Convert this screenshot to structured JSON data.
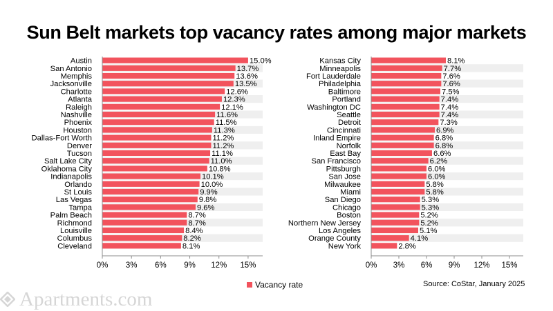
{
  "title": "Sun Belt markets top vacancy rates among major markets",
  "legend": {
    "label": "Vacancy rate",
    "color": "#f2535d"
  },
  "source": "Source: CoStar, January 2025",
  "logo": {
    "text": "Apartments.com",
    "icon": "apartments-logo-icon"
  },
  "colors": {
    "bar": "#f2535d",
    "stripe": "#efefef",
    "axis": "#8c8c8c"
  },
  "chart_data": [
    {
      "type": "bar",
      "orientation": "horizontal",
      "categories": [
        "Austin",
        "San Antonio",
        "Memphis",
        "Jacksonville",
        "Charlotte",
        "Atlanta",
        "Raleigh",
        "Nashville",
        "Phoenix",
        "Houston",
        "Dallas-Fort Worth",
        "Denver",
        "Tucson",
        "Salt Lake City",
        "Oklahoma City",
        "Indianapolis",
        "Orlando",
        "St Louis",
        "Las Vegas",
        "Tampa",
        "Palm Beach",
        "Richmond",
        "Louisville",
        "Columbus",
        "Cleveland"
      ],
      "values": [
        15.0,
        13.7,
        13.6,
        13.5,
        12.6,
        12.3,
        12.1,
        11.6,
        11.5,
        11.3,
        11.2,
        11.2,
        11.1,
        11.0,
        10.8,
        10.1,
        10.0,
        9.9,
        9.8,
        9.6,
        8.7,
        8.7,
        8.4,
        8.2,
        8.1
      ],
      "labels": [
        "15.0%",
        "13.7%",
        "13.6%",
        "13.5%",
        "12.6%",
        "12.3%",
        "12.1%",
        "11.6%",
        "11.5%",
        "11.3%",
        "11.2%",
        "11.2%",
        "11.1%",
        "11.0%",
        "10.8%",
        "10.1%",
        "10.0%",
        "9.9%",
        "9.8%",
        "9.6%",
        "8.7%",
        "8.7%",
        "8.4%",
        "8.2%",
        "8.1%"
      ],
      "xlim": [
        0,
        16.5
      ],
      "xticks": [
        0,
        3,
        6,
        9,
        12,
        15
      ],
      "xtick_labels": [
        "0%",
        "3%",
        "6%",
        "9%",
        "12%",
        "15%"
      ],
      "series_name": "Vacancy rate"
    },
    {
      "type": "bar",
      "orientation": "horizontal",
      "categories": [
        "Kansas City",
        "Minneapolis",
        "Fort Lauderdale",
        "Philadelphia",
        "Baltimore",
        "Portland",
        "Washington DC",
        "Seattle",
        "Detroit",
        "Cincinnati",
        "Inland Empire",
        "Norfolk",
        "East Bay",
        "San Francisco",
        "Pittsburgh",
        "San Jose",
        "Milwaukee",
        "Miami",
        "San Diego",
        "Chicago",
        "Boston",
        "Northern New Jersey",
        "Los Angeles",
        "Orange County",
        "New York"
      ],
      "values": [
        8.1,
        7.7,
        7.6,
        7.6,
        7.5,
        7.4,
        7.4,
        7.4,
        7.3,
        6.9,
        6.8,
        6.8,
        6.6,
        6.2,
        6.0,
        6.0,
        5.8,
        5.8,
        5.3,
        5.3,
        5.2,
        5.2,
        5.1,
        4.1,
        2.8
      ],
      "labels": [
        "8.1%",
        "7.7%",
        "7.6%",
        "7.6%",
        "7.5%",
        "7.4%",
        "7.4%",
        "7.4%",
        "7.3%",
        "6.9%",
        "6.8%",
        "6.8%",
        "6.6%",
        "6.2%",
        "6.0%",
        "6.0%",
        "5.8%",
        "5.8%",
        "5.3%",
        "5.3%",
        "5.2%",
        "5.2%",
        "5.1%",
        "4.1%",
        "2.8%"
      ],
      "xlim": [
        0,
        16.5
      ],
      "xticks": [
        0,
        3,
        6,
        9,
        12,
        15
      ],
      "xtick_labels": [
        "0%",
        "3%",
        "6%",
        "9%",
        "12%",
        "15%"
      ],
      "series_name": "Vacancy rate"
    }
  ]
}
